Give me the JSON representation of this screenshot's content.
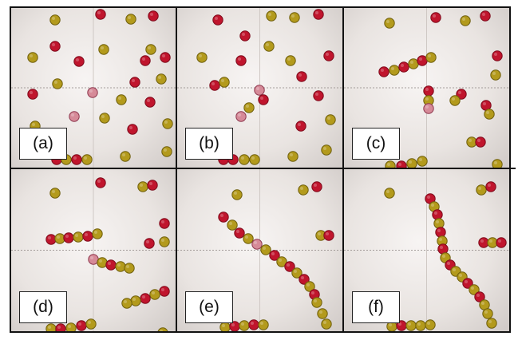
{
  "figure": {
    "panels": [
      {
        "id": "a",
        "label": "(a)"
      },
      {
        "id": "b",
        "label": "(b)"
      },
      {
        "id": "c",
        "label": "(c)"
      },
      {
        "id": "d",
        "label": "(d)"
      },
      {
        "id": "e",
        "label": "(e)"
      },
      {
        "id": "f",
        "label": "(f)"
      }
    ]
  },
  "colors": {
    "tank_background": "#e9e4e1",
    "red_disc": "#c0152d",
    "yellow_disc": "#b39a1c",
    "marked_disc": "#d68a98",
    "frame": "#111111",
    "label_background": "#ffffff"
  }
}
